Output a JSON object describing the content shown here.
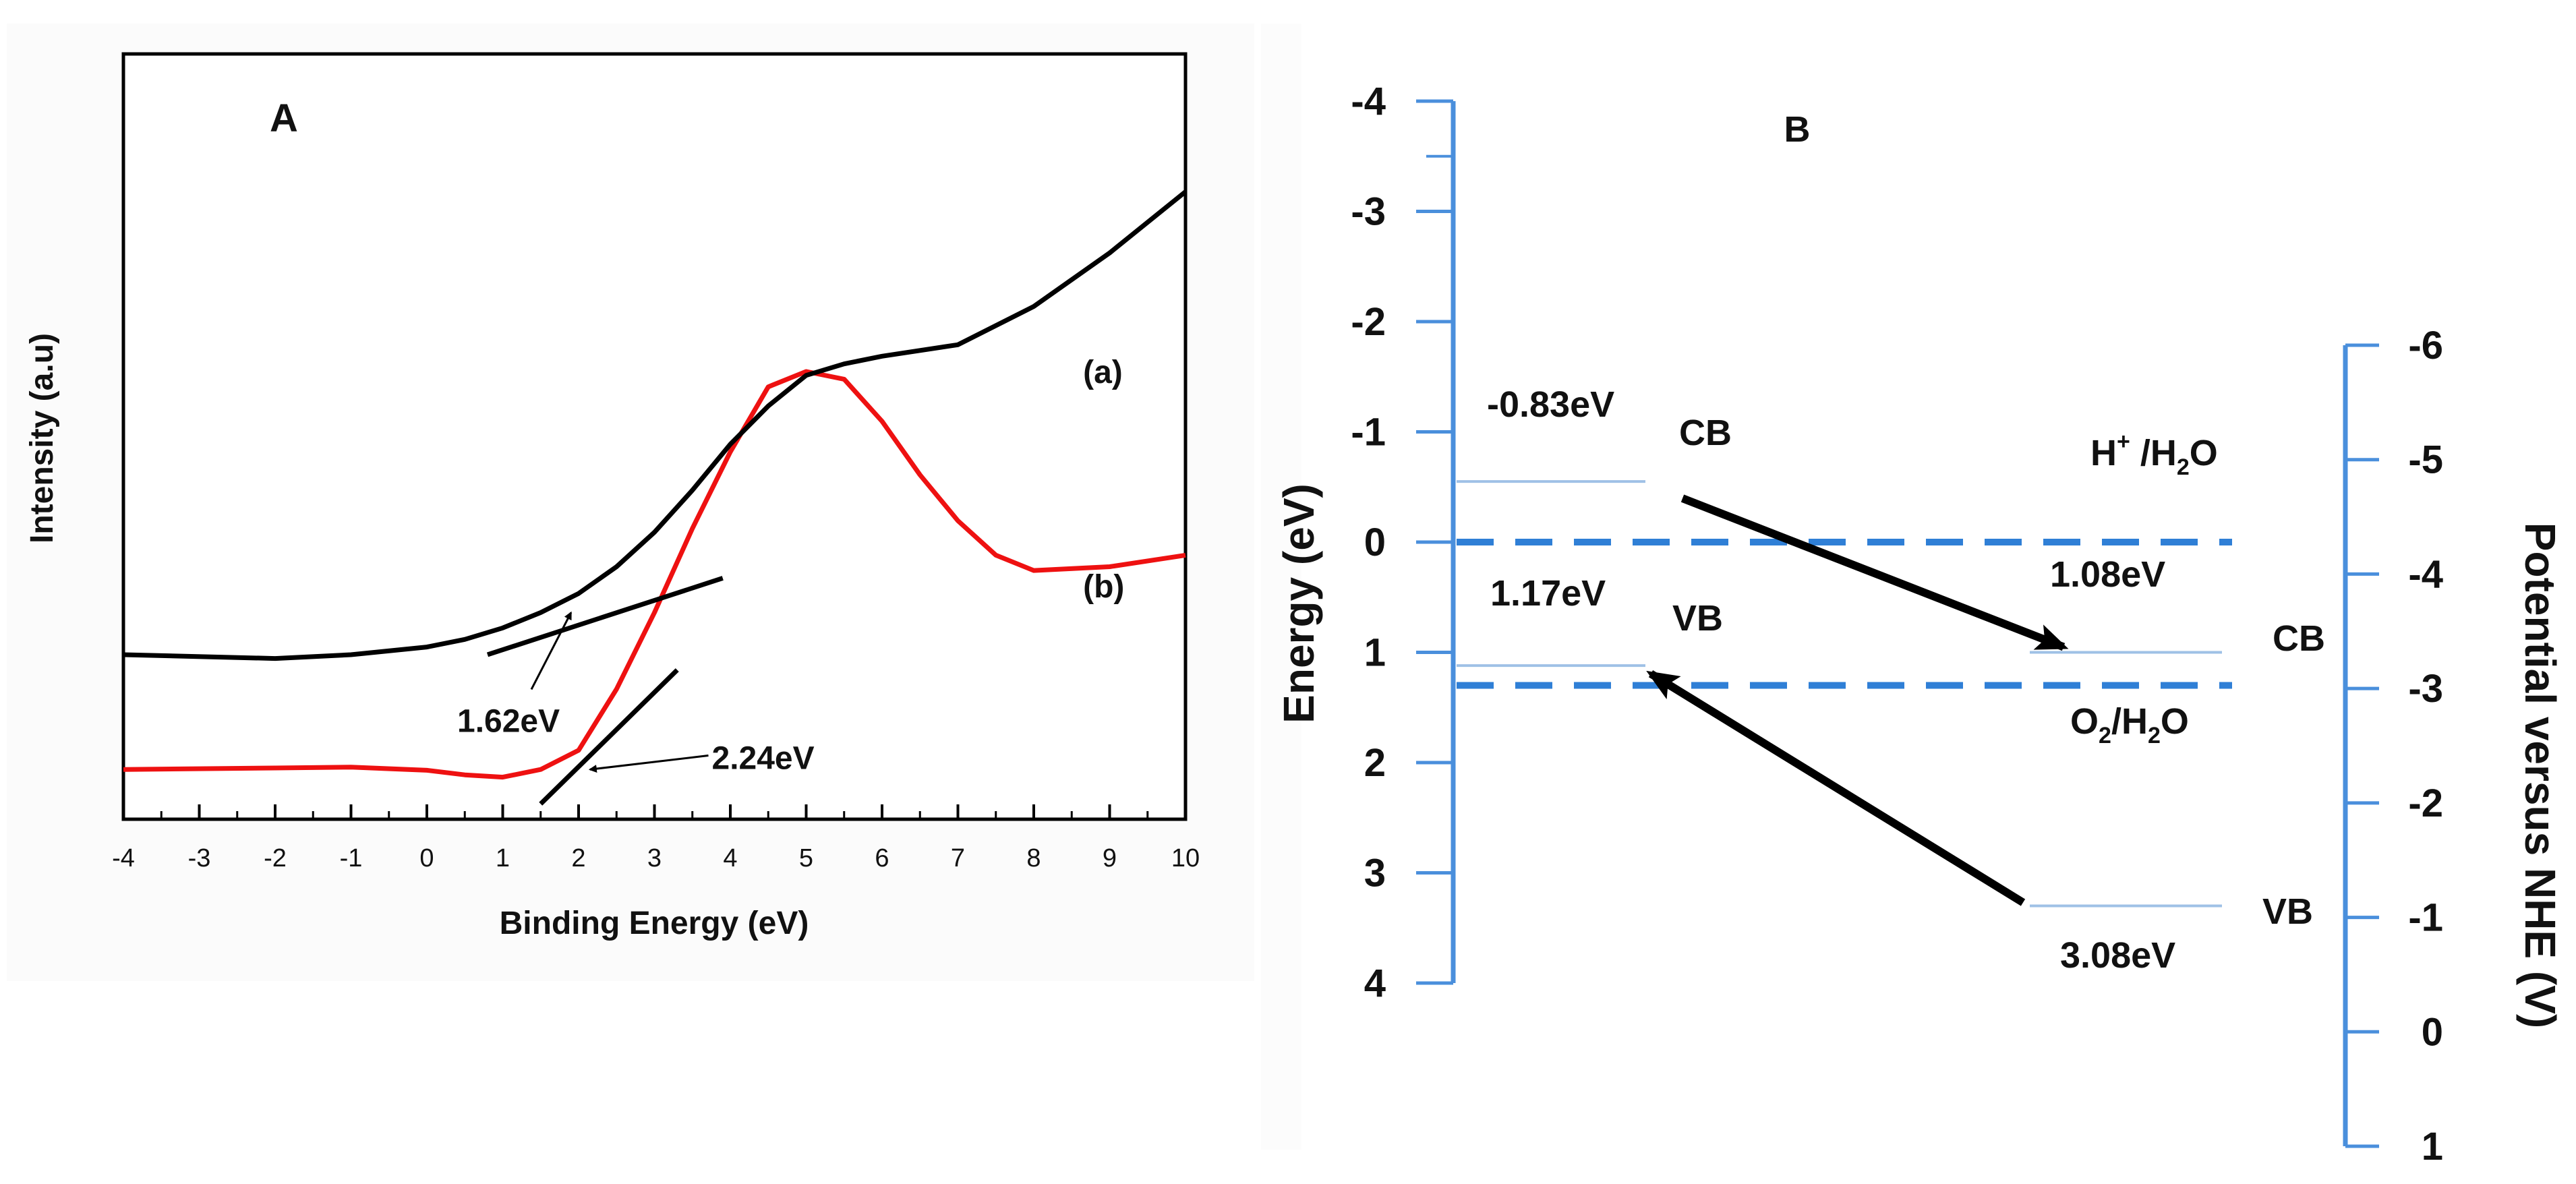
{
  "chart_data": [
    {
      "panel_label": "A",
      "type": "line",
      "xlabel": "Binding Energy (eV)",
      "ylabel": "Intensity (a.u)",
      "xlim": [
        -4,
        10
      ],
      "ylim": [
        0,
        1
      ],
      "x_ticks": [
        "-4",
        "-3",
        "-2",
        "-1",
        "0",
        "1",
        "2",
        "3",
        "4",
        "5",
        "6",
        "7",
        "8",
        "9",
        "10"
      ],
      "colors": {
        "a": "#000000",
        "b": "#ee1111",
        "tangent": "#000000"
      },
      "series": [
        {
          "name": "(a)",
          "x": [
            -4,
            -2,
            -1,
            0,
            0.5,
            1,
            1.5,
            2,
            2.5,
            3,
            3.5,
            4,
            4.5,
            5,
            5.5,
            6,
            7,
            8,
            9,
            10
          ],
          "y": [
            0.215,
            0.21,
            0.215,
            0.225,
            0.235,
            0.25,
            0.27,
            0.295,
            0.33,
            0.375,
            0.43,
            0.49,
            0.54,
            0.58,
            0.595,
            0.605,
            0.62,
            0.67,
            0.74,
            0.82
          ]
        },
        {
          "name": "(b)",
          "x": [
            -4,
            -2,
            -1,
            0,
            0.5,
            1,
            1.5,
            2,
            2.5,
            3,
            3.5,
            4,
            4.5,
            5,
            5.5,
            6,
            6.5,
            7,
            7.5,
            8,
            9,
            10
          ],
          "y": [
            0.065,
            0.067,
            0.068,
            0.064,
            0.058,
            0.055,
            0.065,
            0.09,
            0.17,
            0.27,
            0.38,
            0.48,
            0.565,
            0.585,
            0.575,
            0.52,
            0.45,
            0.39,
            0.345,
            0.325,
            0.33,
            0.345
          ]
        }
      ],
      "tangents": [
        {
          "for": "(a)",
          "x": [
            0.8,
            3.9
          ],
          "y": [
            0.215,
            0.315
          ]
        },
        {
          "for": "(b)",
          "x": [
            1.5,
            3.3
          ],
          "y": [
            0.02,
            0.195
          ]
        }
      ],
      "annotations": [
        {
          "text": "1.62eV",
          "x": 1.2,
          "y": 0.13,
          "arrow_to": [
            1.9,
            0.27
          ]
        },
        {
          "text": "2.24eV",
          "x": 3.8,
          "y": 0.07,
          "arrow_to": [
            2.15,
            0.065
          ]
        },
        {
          "text": "(a)",
          "x": 8.65,
          "y": 0.57
        },
        {
          "text": "(b)",
          "x": 8.65,
          "y": 0.29
        }
      ]
    },
    {
      "panel_label": "B",
      "type": "band-diagram",
      "left_axis": {
        "label": "Energy (eV)",
        "range": [
          -4,
          4
        ],
        "ticks": [
          "-4",
          "-3",
          "-2",
          "-1",
          "0",
          "1",
          "2",
          "3",
          "4"
        ]
      },
      "right_axis": {
        "label": "Potential versus NHE (V)",
        "range": [
          -6,
          1
        ],
        "ticks": [
          "-6",
          "-5",
          "-4",
          "-3",
          "-2",
          "-1",
          "0",
          "1"
        ]
      },
      "axis_color": "#4a8fdc",
      "dashed_color": "#2f7fd6",
      "level_color": "#9fc1e6",
      "levels": [
        {
          "name": "CB-left",
          "energy": -0.55,
          "label": "CB",
          "value_text": "-0.83eV"
        },
        {
          "name": "VB-left",
          "energy": 1.12,
          "label": "VB",
          "value_text": "1.17eV"
        },
        {
          "name": "CB-right",
          "energy": 1.0,
          "label": "CB",
          "value_text": "1.08eV"
        },
        {
          "name": "VB-right",
          "energy": 3.3,
          "label": "VB",
          "value_text": "3.08eV"
        }
      ],
      "redox_lines": [
        {
          "energy": 0.0,
          "label_main": "H",
          "label_sup": "+",
          "label_tail": " /H",
          "label_sub": "2",
          "label_end": "O"
        },
        {
          "energy": 1.3,
          "label_main": "O",
          "label_sub": "2",
          "label_tail": "/H",
          "label_sub2": "2",
          "label_end": "O"
        }
      ],
      "arrows": [
        {
          "from": "CB-left",
          "to": "CB-right"
        },
        {
          "from": "VB-right",
          "to": "VB-left"
        }
      ]
    }
  ]
}
